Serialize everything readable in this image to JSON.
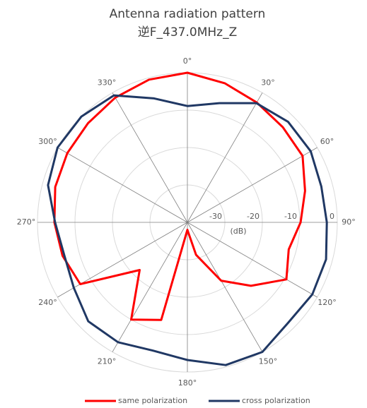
{
  "chart_data": {
    "type": "polar_line",
    "title": "Antenna radiation pattern",
    "subtitle": "逆F_437.0MHz_Z",
    "radial_label": "(dB)",
    "theta": [
      0,
      15,
      30,
      45,
      60,
      75,
      90,
      105,
      120,
      135,
      150,
      165,
      180,
      195,
      210,
      225,
      240,
      255,
      270,
      285,
      300,
      315,
      330,
      345
    ],
    "theta_ticks": [
      {
        "value": 0,
        "label": "0°"
      },
      {
        "value": 30,
        "label": "30°"
      },
      {
        "value": 60,
        "label": "60°"
      },
      {
        "value": 90,
        "label": "90°"
      },
      {
        "value": 120,
        "label": "120°"
      },
      {
        "value": 150,
        "label": "150°"
      },
      {
        "value": 180,
        "label": "180°"
      },
      {
        "value": 210,
        "label": "210°"
      },
      {
        "value": 240,
        "label": "240°"
      },
      {
        "value": 270,
        "label": "270°"
      },
      {
        "value": 300,
        "label": "300°"
      },
      {
        "value": 330,
        "label": "330°"
      }
    ],
    "rlim": [
      -40,
      0
    ],
    "rticks": [
      -30,
      -20,
      -10,
      0
    ],
    "direction": "clockwise",
    "legend": "bottom",
    "series": [
      {
        "name": "same polarization",
        "color": "#ff0000",
        "values": [
          0,
          -1.5,
          -3,
          -4,
          -4.5,
          -7.5,
          -9.8,
          -12,
          -9.5,
          -16,
          -22,
          -31,
          -38,
          -13,
          -10,
          -22,
          -7,
          -5.5,
          -4.5,
          -3.5,
          -3,
          -2.5,
          -1.5,
          -0.5
        ]
      },
      {
        "name": "cross polarization",
        "color": "#203864",
        "values": [
          -8.9,
          -7,
          -3.2,
          -2,
          -2,
          -3,
          -2.8,
          -1.7,
          -1.5,
          -2,
          0,
          -0.5,
          -3.2,
          -4.5,
          -3,
          -2.6,
          -5,
          -6,
          -4.7,
          -1.5,
          0,
          0,
          -0.8,
          -5.7
        ]
      }
    ]
  }
}
